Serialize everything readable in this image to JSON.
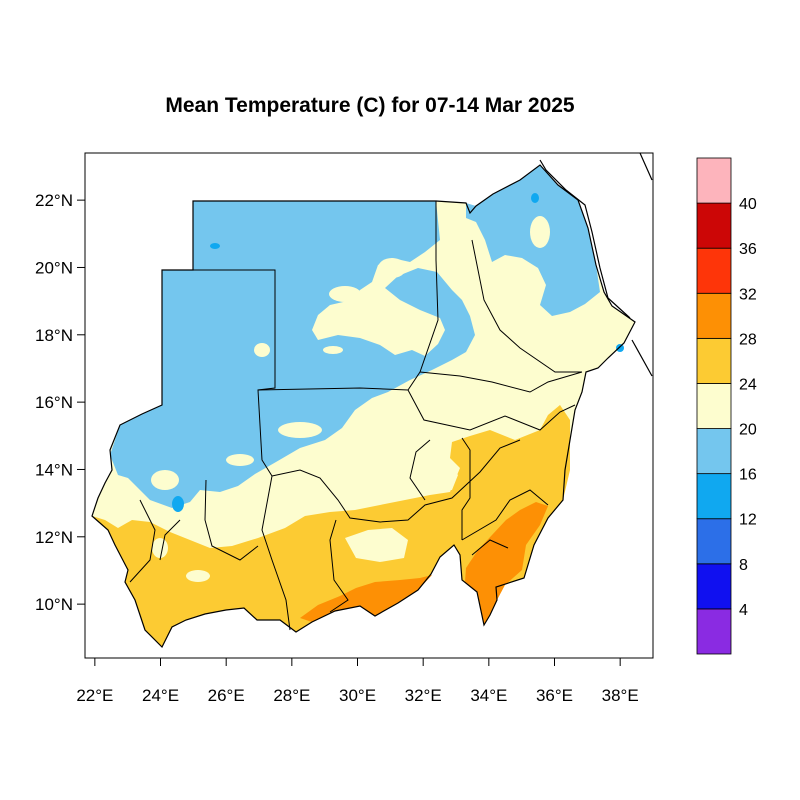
{
  "title": "Mean Temperature (C) for 07-14 Mar 2025",
  "map": {
    "lon_range": [
      21.7,
      39.0
    ],
    "lat_range": [
      8.4,
      23.4
    ],
    "x_ticks": [
      {
        "lon": 22,
        "label": "22°E"
      },
      {
        "lon": 24,
        "label": "24°E"
      },
      {
        "lon": 26,
        "label": "26°E"
      },
      {
        "lon": 28,
        "label": "28°E"
      },
      {
        "lon": 30,
        "label": "30°E"
      },
      {
        "lon": 32,
        "label": "32°E"
      },
      {
        "lon": 34,
        "label": "34°E"
      },
      {
        "lon": 36,
        "label": "36°E"
      },
      {
        "lon": 38,
        "label": "38°E"
      }
    ],
    "y_ticks": [
      {
        "lat": 10,
        "label": "10°N"
      },
      {
        "lat": 12,
        "label": "12°N"
      },
      {
        "lat": 14,
        "label": "14°N"
      },
      {
        "lat": 16,
        "label": "16°N"
      },
      {
        "lat": 18,
        "label": "18°N"
      },
      {
        "lat": 20,
        "label": "20°N"
      },
      {
        "lat": 22,
        "label": "22°N"
      }
    ]
  },
  "colorbar": {
    "bins": [
      {
        "range": "<4",
        "color": "#8a2be2"
      },
      {
        "range": "4-8",
        "color": "#1010f0"
      },
      {
        "range": "8-12",
        "color": "#2c6fe8"
      },
      {
        "range": "12-16",
        "color": "#10a8f0"
      },
      {
        "range": "16-20",
        "color": "#74c6ee"
      },
      {
        "range": "20-24",
        "color": "#fdfdcf"
      },
      {
        "range": "24-28",
        "color": "#fccb33"
      },
      {
        "range": "28-32",
        "color": "#fd9005"
      },
      {
        "range": "32-36",
        "color": "#fe3509"
      },
      {
        "range": "36-40",
        "color": "#cc0606"
      },
      {
        "range": ">40",
        "color": "#fdb4bc"
      }
    ],
    "labels": [
      "4",
      "8",
      "12",
      "16",
      "20",
      "24",
      "28",
      "32",
      "36",
      "40"
    ]
  }
}
